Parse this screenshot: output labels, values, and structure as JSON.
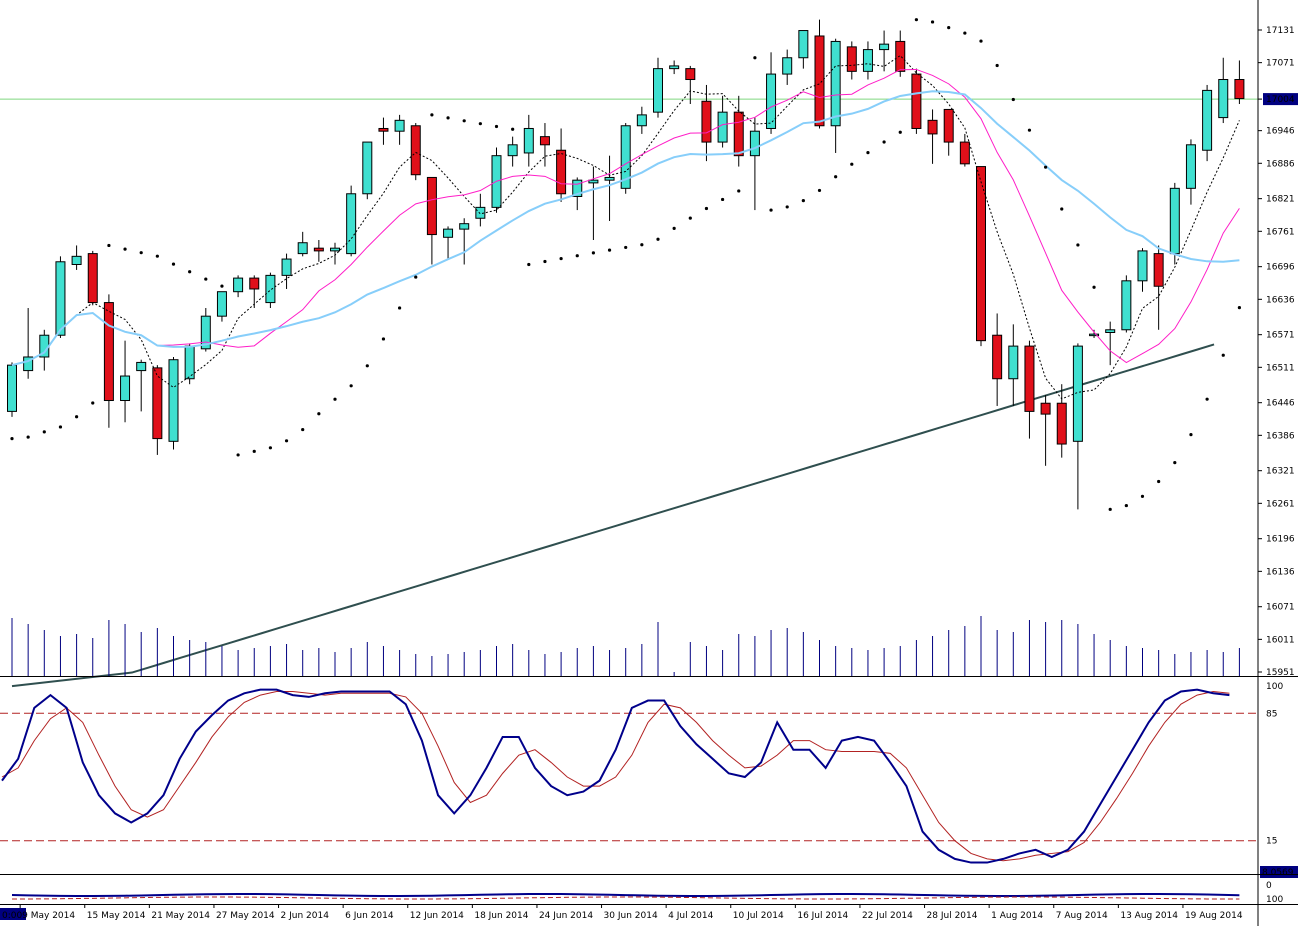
{
  "chart_data": {
    "type": "candlestick",
    "title": "",
    "current_price_label": "17004",
    "price_axis": {
      "ticks": [
        17131,
        17071,
        17004,
        16946,
        16886,
        16821,
        16761,
        16696,
        16636,
        16571,
        16511,
        16446,
        16386,
        16321,
        16261,
        16196,
        16136,
        16071,
        16011,
        15951
      ],
      "range": [
        15940,
        17165
      ]
    },
    "date_labels": [
      "9 May 2014",
      "15 May 2014",
      "21 May 2014",
      "27 May 2014",
      "2 Jun 2014",
      "6 Jun 2014",
      "12 Jun 2014",
      "18 Jun 2014",
      "24 Jun 2014",
      "30 Jun 2014",
      "4 Jul 2014",
      "10 Jul 2014",
      "16 Jul 2014",
      "22 Jul 2014",
      "28 Jul 2014",
      "1 Aug 2014",
      "7 Aug 2014",
      "13 Aug 2014",
      "19 Aug 2014"
    ],
    "date_label_candle_index": [
      1,
      5,
      9,
      13,
      17,
      21,
      25,
      29,
      33,
      37,
      41,
      45,
      49,
      53,
      57,
      61,
      65,
      69,
      73
    ],
    "time_marker_label": "0:00",
    "candles": [
      [
        16430,
        16520,
        16420,
        16515
      ],
      [
        16505,
        16620,
        16490,
        16530
      ],
      [
        16530,
        16580,
        16505,
        16570
      ],
      [
        16570,
        16715,
        16565,
        16705
      ],
      [
        16700,
        16735,
        16690,
        16715
      ],
      [
        16720,
        16725,
        16625,
        16630
      ],
      [
        16630,
        16645,
        16400,
        16450
      ],
      [
        16450,
        16560,
        16410,
        16495
      ],
      [
        16505,
        16525,
        16430,
        16520
      ],
      [
        16510,
        16515,
        16350,
        16380
      ],
      [
        16375,
        16530,
        16360,
        16525
      ],
      [
        16490,
        16555,
        16480,
        16550
      ],
      [
        16545,
        16620,
        16540,
        16605
      ],
      [
        16605,
        16650,
        16595,
        16650
      ],
      [
        16650,
        16680,
        16640,
        16675
      ],
      [
        16675,
        16680,
        16620,
        16655
      ],
      [
        16630,
        16685,
        16620,
        16680
      ],
      [
        16680,
        16720,
        16655,
        16710
      ],
      [
        16720,
        16760,
        16715,
        16740
      ],
      [
        16730,
        16745,
        16705,
        16725
      ],
      [
        16725,
        16740,
        16700,
        16730
      ],
      [
        16720,
        16845,
        16715,
        16830
      ],
      [
        16830,
        16925,
        16820,
        16925
      ],
      [
        16950,
        16970,
        16920,
        16945
      ],
      [
        16945,
        16975,
        16920,
        16965
      ],
      [
        16955,
        16960,
        16855,
        16865
      ],
      [
        16860,
        16860,
        16700,
        16755
      ],
      [
        16750,
        16770,
        16710,
        16765
      ],
      [
        16765,
        16785,
        16700,
        16775
      ],
      [
        16785,
        16830,
        16770,
        16805
      ],
      [
        16805,
        16915,
        16795,
        16900
      ],
      [
        16900,
        16935,
        16880,
        16920
      ],
      [
        16905,
        16975,
        16880,
        16950
      ],
      [
        16935,
        16960,
        16880,
        16920
      ],
      [
        16910,
        16950,
        16815,
        16830
      ],
      [
        16825,
        16860,
        16800,
        16855
      ],
      [
        16850,
        16880,
        16745,
        16855
      ],
      [
        16855,
        16900,
        16780,
        16860
      ],
      [
        16840,
        16960,
        16830,
        16955
      ],
      [
        16955,
        16990,
        16940,
        16975
      ],
      [
        16980,
        17080,
        16970,
        17060
      ],
      [
        17060,
        17075,
        17050,
        17065
      ],
      [
        17060,
        17065,
        16995,
        17040
      ],
      [
        17000,
        17030,
        16890,
        16925
      ],
      [
        16925,
        17010,
        16915,
        16980
      ],
      [
        16980,
        17010,
        16880,
        16900
      ],
      [
        16900,
        16970,
        16800,
        16945
      ],
      [
        16950,
        17090,
        16940,
        17050
      ],
      [
        17050,
        17095,
        17030,
        17080
      ],
      [
        17080,
        17130,
        17060,
        17130
      ],
      [
        17120,
        17150,
        16950,
        16955
      ],
      [
        16955,
        17115,
        16905,
        17110
      ],
      [
        17100,
        17110,
        17040,
        17055
      ],
      [
        17055,
        17110,
        17040,
        17095
      ],
      [
        17095,
        17130,
        17055,
        17105
      ],
      [
        17110,
        17130,
        17045,
        17055
      ],
      [
        17050,
        17060,
        16940,
        16950
      ],
      [
        16965,
        16985,
        16885,
        16940
      ],
      [
        16985,
        16985,
        16900,
        16925
      ],
      [
        16925,
        16940,
        16880,
        16885
      ],
      [
        16880,
        16880,
        16550,
        16560
      ],
      [
        16570,
        16610,
        16440,
        16490
      ],
      [
        16490,
        16590,
        16440,
        16550
      ],
      [
        16550,
        16560,
        16380,
        16430
      ],
      [
        16445,
        16460,
        16330,
        16425
      ],
      [
        16445,
        16480,
        16345,
        16370
      ],
      [
        16375,
        16555,
        16250,
        16550
      ],
      [
        16570,
        16580,
        16565,
        16572
      ],
      [
        16575,
        16595,
        16515,
        16580
      ],
      [
        16580,
        16680,
        16575,
        16670
      ],
      [
        16670,
        16730,
        16650,
        16725
      ],
      [
        16720,
        16735,
        16580,
        16660
      ],
      [
        16720,
        16850,
        16700,
        16840
      ],
      [
        16840,
        16930,
        16810,
        16920
      ],
      [
        16910,
        17030,
        16890,
        17020
      ],
      [
        16970,
        17080,
        16960,
        17040
      ],
      [
        17040,
        17075,
        16995,
        17005
      ]
    ],
    "sma_200_series": [
      15950,
      15959,
      15968,
      15977,
      15986,
      15995,
      16004,
      16013,
      16022,
      16031,
      16040,
      16049,
      16058,
      16067,
      16076,
      16085,
      16094,
      16103,
      16112,
      16121,
      16130,
      16139,
      16148,
      16157,
      16166,
      16175,
      16184,
      16193,
      16202,
      16211,
      16220,
      16229,
      16238,
      16247,
      16256,
      16265,
      16274,
      16283,
      16292,
      16301,
      16310,
      16319,
      16328,
      16337,
      16346,
      16355,
      16364,
      16373,
      16382,
      16391,
      16400,
      16409,
      16418,
      16427,
      16436,
      16445,
      16454,
      16463,
      16472,
      16481,
      16490,
      16499,
      16508,
      16517,
      16526,
      16535,
      16544,
      16553,
      16562,
      16571,
      16580,
      16589,
      16598,
      16607,
      16616,
      16625,
      16634
    ],
    "stochastic": {
      "levels": [
        100,
        85,
        15,
        0
      ],
      "k_series": [
        48,
        60,
        88,
        95,
        88,
        58,
        40,
        30,
        25,
        30,
        40,
        60,
        75,
        84,
        92,
        96,
        98,
        98,
        95,
        94,
        96,
        97,
        97,
        97,
        97,
        90,
        70,
        40,
        30,
        40,
        55,
        72,
        72,
        55,
        45,
        40,
        42,
        48,
        65,
        88,
        92,
        92,
        78,
        68,
        60,
        52,
        50,
        58,
        80,
        65,
        65,
        55,
        70,
        72,
        70,
        58,
        45,
        20,
        10,
        5,
        3,
        3,
        5,
        8,
        10,
        6,
        10,
        20,
        35,
        50,
        65,
        80,
        92,
        97,
        98,
        96,
        95
      ],
      "d_series": [
        50,
        55,
        70,
        82,
        88,
        80,
        62,
        45,
        32,
        28,
        32,
        45,
        58,
        72,
        83,
        91,
        95,
        97,
        97,
        96,
        95,
        96,
        96,
        96,
        96,
        94,
        85,
        67,
        47,
        36,
        40,
        52,
        62,
        65,
        58,
        50,
        45,
        45,
        50,
        62,
        80,
        90,
        88,
        80,
        70,
        62,
        55,
        56,
        62,
        70,
        70,
        65,
        64,
        64,
        64,
        63,
        55,
        40,
        25,
        15,
        8,
        5,
        4,
        5,
        7,
        8,
        9,
        14,
        25,
        38,
        52,
        67,
        80,
        90,
        95,
        97,
        96
      ]
    },
    "lower_indicator_label": "8.0569",
    "lower_indicator_axis": [
      "0",
      "100"
    ],
    "colors": {
      "bull_body": "#40e0d0",
      "bear_body": "#e0101a",
      "sma_fast": "#ff1ec8",
      "sma_mid": "#87cefa",
      "sma_200": "#2f4f4f",
      "current_line": "#7fd67f",
      "stoch_k": "#00008b",
      "stoch_d": "#b22222",
      "levels": "#b22222",
      "volume": "#000080"
    }
  }
}
